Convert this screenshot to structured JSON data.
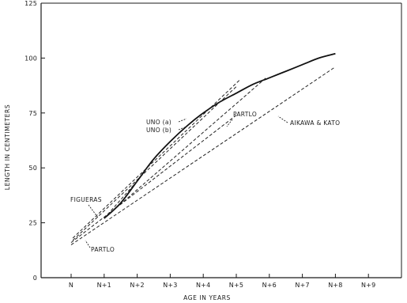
{
  "chart_data": {
    "type": "line",
    "title": "",
    "xlabel": "AGE IN YEARS",
    "ylabel": "LENGTH IN CENTIMETERS",
    "x_tick_labels": [
      "N",
      "N+1",
      "N+2",
      "N+3",
      "N+4",
      "N+5",
      "N+6",
      "N+7",
      "N+8",
      "N+9"
    ],
    "y_ticks": [
      0,
      25,
      50,
      75,
      100,
      125
    ],
    "ylim": [
      0,
      125
    ],
    "grid": false,
    "legend": "none (curves labeled inline)",
    "series": [
      {
        "name": "",
        "style": "solid",
        "x": [
          1.0,
          1.5,
          2.0,
          2.5,
          3.0,
          3.5,
          4.0,
          4.5,
          5.0,
          5.5,
          6.0,
          6.5,
          7.0,
          7.5,
          8.0
        ],
        "y": [
          27,
          34,
          44,
          54,
          62,
          69,
          75,
          80,
          84,
          88,
          91,
          94,
          97,
          100,
          102
        ]
      },
      {
        "name": "UNO (a)",
        "style": "dashed",
        "x": [
          0.05,
          5.1
        ],
        "y": [
          18,
          90
        ]
      },
      {
        "name": "UNO (b)",
        "style": "dashed",
        "x": [
          0.05,
          5.0
        ],
        "y": [
          17,
          87
        ]
      },
      {
        "name": "PARTLO",
        "style": "dashed",
        "x": [
          1.0,
          5.9
        ],
        "y": [
          27,
          91
        ]
      },
      {
        "name": "PARTLO",
        "style": "dashed",
        "x": [
          0.0,
          5.0
        ],
        "y": [
          16,
          74
        ]
      },
      {
        "name": "AIKAWA & KATO",
        "style": "dashed",
        "x": [
          0.0,
          8.0
        ],
        "y": [
          15,
          96
        ]
      },
      {
        "name": "FIGUERAS",
        "style": "dashed",
        "x": [
          1.0,
          2.0
        ],
        "y": [
          27,
          44
        ]
      }
    ],
    "annotations": [
      {
        "text": "UNO (a)"
      },
      {
        "text": "UNO (b)"
      },
      {
        "text": "PARTLO"
      },
      {
        "text": "AIKAWA & KATO"
      },
      {
        "text": "FIGUERAS"
      },
      {
        "text": "PARTLO"
      }
    ]
  }
}
